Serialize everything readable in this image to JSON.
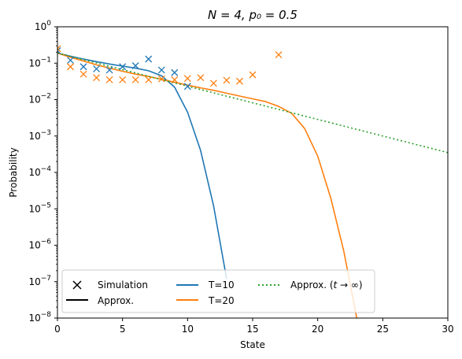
{
  "chart_data": {
    "type": "line",
    "title": "N = 4, p₀ = 0.5",
    "xlabel": "State",
    "ylabel": "Probability",
    "xlim": [
      0,
      30
    ],
    "ylim_exponents": [
      -8,
      0
    ],
    "yscale": "log",
    "x_ticks": [
      "0",
      "5",
      "10",
      "15",
      "20",
      "25",
      "30"
    ],
    "y_ticks": [
      {
        "base": "10",
        "exp": "0"
      },
      {
        "base": "10",
        "exp": "−1"
      },
      {
        "base": "10",
        "exp": "−2"
      },
      {
        "base": "10",
        "exp": "−3"
      },
      {
        "base": "10",
        "exp": "−4"
      },
      {
        "base": "10",
        "exp": "−5"
      },
      {
        "base": "10",
        "exp": "−6"
      },
      {
        "base": "10",
        "exp": "−7"
      },
      {
        "base": "10",
        "exp": "−8"
      }
    ],
    "legend_position": "lower-left",
    "legend": {
      "simulation": "Simulation",
      "approx": "Approx.",
      "t10": "T=10",
      "t20": "T=20",
      "approx_inf_prefix": "Approx. (",
      "approx_inf_t": "t",
      "approx_inf_suffix": " → ∞)"
    },
    "colors": {
      "t10": "#1f77b4",
      "t20": "#ff7f0e",
      "approx_inf": "#2ca02c",
      "approx": "#000000"
    },
    "series": [
      {
        "name": "T=10",
        "style": "line",
        "x": [
          0,
          1,
          2,
          3,
          4,
          5,
          6,
          7,
          8,
          9,
          10,
          11,
          12,
          13
        ],
        "y": [
          0.19,
          0.155,
          0.13,
          0.11,
          0.095,
          0.083,
          0.073,
          0.062,
          0.045,
          0.022,
          0.0045,
          0.0004,
          1.2e-05,
          1.2e-07
        ]
      },
      {
        "name": "T=20",
        "style": "line",
        "x": [
          0,
          1,
          2,
          3,
          4,
          5,
          6,
          7,
          8,
          9,
          10,
          11,
          12,
          13,
          14,
          15,
          16,
          17,
          18,
          19,
          20,
          21,
          22,
          23
        ],
        "y": [
          0.19,
          0.145,
          0.115,
          0.09,
          0.073,
          0.06,
          0.05,
          0.043,
          0.036,
          0.03,
          0.025,
          0.021,
          0.018,
          0.015,
          0.0125,
          0.0105,
          0.0088,
          0.0065,
          0.0042,
          0.0016,
          0.00028,
          2e-05,
          7e-07,
          1e-08
        ]
      },
      {
        "name": "Approx. (t → ∞)",
        "style": "dotted",
        "x": [
          0,
          30
        ],
        "y": [
          0.19,
          0.00035
        ]
      },
      {
        "name": "T=10 Simulation",
        "style": "marker-x",
        "x": [
          0,
          1,
          2,
          3,
          4,
          5,
          6,
          7,
          8,
          9,
          10
        ],
        "y": [
          0.22,
          0.12,
          0.08,
          0.07,
          0.065,
          0.08,
          0.085,
          0.13,
          0.065,
          0.055,
          0.023
        ]
      },
      {
        "name": "T=20 Simulation",
        "style": "marker-x",
        "x": [
          0,
          1,
          2,
          3,
          4,
          5,
          6,
          7,
          8,
          9,
          10,
          11,
          12,
          13,
          14,
          15,
          17
        ],
        "y": [
          0.25,
          0.08,
          0.05,
          0.04,
          0.035,
          0.035,
          0.035,
          0.035,
          0.037,
          0.035,
          0.038,
          0.04,
          0.028,
          0.034,
          0.032,
          0.048,
          0.17
        ]
      }
    ]
  }
}
